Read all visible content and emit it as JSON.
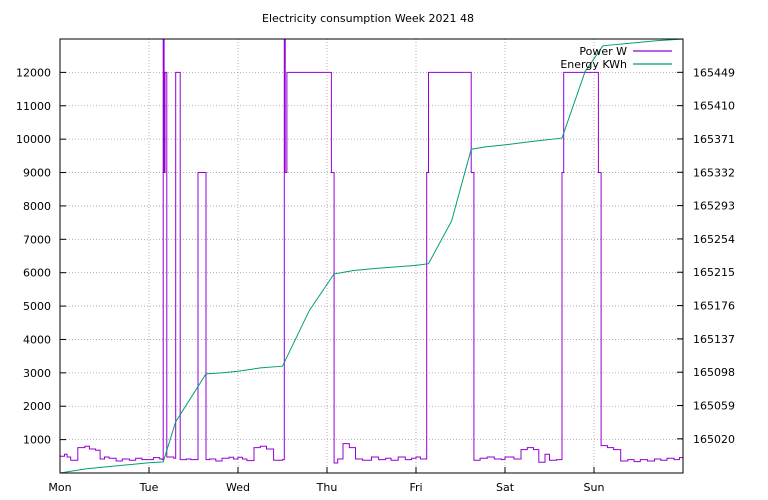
{
  "chart_data": {
    "type": "line",
    "title": "Electricity consumption Week 2021 48",
    "xlabel": "",
    "ylabel": "",
    "y2label": "",
    "x_ticks": [
      "Mon",
      "Tue",
      "Wed",
      "Thu",
      "Fri",
      "Sat",
      "Sun"
    ],
    "xlim": [
      0,
      7
    ],
    "ylim": [
      0,
      13000
    ],
    "y_ticks": [
      1000,
      2000,
      3000,
      4000,
      5000,
      6000,
      7000,
      8000,
      9000,
      10000,
      11000,
      12000
    ],
    "y2lim": [
      164980,
      165488
    ],
    "y2_ticks": [
      165020,
      165059,
      165098,
      165137,
      165176,
      165215,
      165254,
      165293,
      165332,
      165371,
      165410,
      165449
    ],
    "grid": true,
    "legend_position": "top-right",
    "colors": {
      "power": "#9400d3",
      "energy": "#009e73"
    },
    "series": [
      {
        "name": "Power W",
        "axis": "left",
        "style": "step",
        "points": [
          [
            0.0,
            500
          ],
          [
            0.05,
            560
          ],
          [
            0.08,
            480
          ],
          [
            0.12,
            380
          ],
          [
            0.2,
            760
          ],
          [
            0.28,
            800
          ],
          [
            0.33,
            720
          ],
          [
            0.4,
            680
          ],
          [
            0.45,
            420
          ],
          [
            0.5,
            480
          ],
          [
            0.55,
            440
          ],
          [
            0.63,
            360
          ],
          [
            0.7,
            420
          ],
          [
            0.78,
            380
          ],
          [
            0.85,
            440
          ],
          [
            0.92,
            400
          ],
          [
            1.0,
            400
          ],
          [
            1.05,
            460
          ],
          [
            1.12,
            420
          ],
          [
            1.2,
            480
          ],
          [
            1.28,
            440
          ],
          [
            1.35,
            400
          ],
          [
            1.42,
            420
          ],
          [
            1.47,
            400
          ],
          [
            1.15,
            400
          ],
          [
            1.16,
            13000
          ],
          [
            1.17,
            9000
          ],
          [
            1.18,
            12000
          ],
          [
            1.3,
            12000
          ],
          [
            1.55,
            9000
          ],
          [
            1.64,
            400
          ],
          [
            1.68,
            420
          ],
          [
            1.75,
            360
          ],
          [
            1.82,
            440
          ],
          [
            1.9,
            470
          ],
          [
            1.95,
            420
          ],
          [
            2.0,
            470
          ],
          [
            2.05,
            420
          ],
          [
            2.1,
            370
          ],
          [
            2.18,
            760
          ],
          [
            2.25,
            800
          ],
          [
            2.32,
            720
          ],
          [
            2.4,
            380
          ],
          [
            2.5,
            400
          ],
          [
            2.52,
            13000
          ],
          [
            2.53,
            9000
          ],
          [
            2.55,
            12000
          ],
          [
            2.8,
            12000
          ],
          [
            3.05,
            9000
          ],
          [
            3.08,
            300
          ],
          [
            3.12,
            420
          ],
          [
            3.18,
            880
          ],
          [
            3.25,
            760
          ],
          [
            3.32,
            420
          ],
          [
            3.4,
            380
          ],
          [
            3.5,
            480
          ],
          [
            3.58,
            400
          ],
          [
            3.66,
            440
          ],
          [
            3.72,
            380
          ],
          [
            3.8,
            480
          ],
          [
            3.88,
            400
          ],
          [
            3.95,
            440
          ],
          [
            4.0,
            480
          ],
          [
            4.05,
            420
          ],
          [
            4.12,
            9000
          ],
          [
            4.14,
            12000
          ],
          [
            4.4,
            12000
          ],
          [
            4.62,
            9000
          ],
          [
            4.65,
            380
          ],
          [
            4.72,
            440
          ],
          [
            4.8,
            480
          ],
          [
            4.88,
            420
          ],
          [
            4.96,
            400
          ],
          [
            5.0,
            480
          ],
          [
            5.1,
            420
          ],
          [
            5.18,
            700
          ],
          [
            5.25,
            760
          ],
          [
            5.32,
            700
          ],
          [
            5.38,
            320
          ],
          [
            5.45,
            560
          ],
          [
            5.5,
            380
          ],
          [
            5.58,
            400
          ],
          [
            5.64,
            9000
          ],
          [
            5.66,
            12000
          ],
          [
            5.9,
            12000
          ],
          [
            6.05,
            9000
          ],
          [
            6.08,
            820
          ],
          [
            6.15,
            760
          ],
          [
            6.22,
            700
          ],
          [
            6.3,
            360
          ],
          [
            6.38,
            400
          ],
          [
            6.45,
            340
          ],
          [
            6.52,
            400
          ],
          [
            6.6,
            360
          ],
          [
            6.68,
            420
          ],
          [
            6.75,
            380
          ],
          [
            6.82,
            440
          ],
          [
            6.9,
            400
          ],
          [
            6.96,
            460
          ],
          [
            7.0,
            460
          ]
        ]
      },
      {
        "name": "Energy KWh",
        "axis": "right",
        "style": "line",
        "points": [
          [
            0.0,
            164980
          ],
          [
            0.3,
            164985
          ],
          [
            0.5,
            164987
          ],
          [
            0.8,
            164990
          ],
          [
            1.0,
            164992
          ],
          [
            1.16,
            164993
          ],
          [
            1.3,
            165040
          ],
          [
            1.64,
            165096
          ],
          [
            1.8,
            165097
          ],
          [
            2.0,
            165099
          ],
          [
            2.25,
            165103
          ],
          [
            2.5,
            165105
          ],
          [
            2.8,
            165170
          ],
          [
            3.08,
            165213
          ],
          [
            3.3,
            165217
          ],
          [
            3.6,
            165220
          ],
          [
            4.0,
            165223
          ],
          [
            4.14,
            165225
          ],
          [
            4.4,
            165275
          ],
          [
            4.62,
            165359
          ],
          [
            4.8,
            165362
          ],
          [
            5.0,
            165364
          ],
          [
            5.3,
            165368
          ],
          [
            5.64,
            165372
          ],
          [
            5.9,
            165450
          ],
          [
            6.1,
            165480
          ],
          [
            6.4,
            165483
          ],
          [
            6.7,
            165486
          ],
          [
            7.0,
            165488
          ]
        ]
      }
    ]
  }
}
